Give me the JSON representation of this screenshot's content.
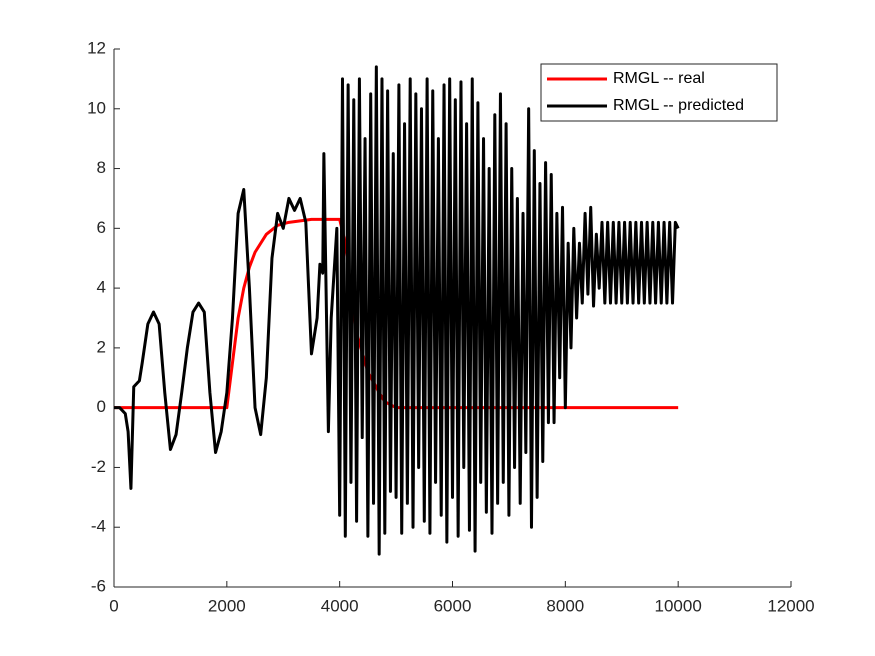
{
  "chart_data": {
    "type": "line",
    "xlim": [
      0,
      12000
    ],
    "xticks": [
      0,
      2000,
      4000,
      6000,
      8000,
      10000,
      12000
    ],
    "ylim": [
      -6,
      12
    ],
    "yticks": [
      -6,
      -4,
      -2,
      0,
      2,
      4,
      6,
      8,
      10,
      12
    ],
    "legend": "northeast",
    "series": [
      {
        "name": "RMGL -- real",
        "color": "#ff0000",
        "x": [
          0,
          500,
          1000,
          1500,
          1900,
          2000,
          2100,
          2200,
          2300,
          2400,
          2500,
          2700,
          2900,
          3100,
          3300,
          3500,
          3800,
          4000,
          4100,
          4200,
          4300,
          4500,
          4700,
          4800,
          5000,
          6000,
          8000,
          10000
        ],
        "values": [
          0,
          0,
          0,
          0,
          0,
          0,
          1.5,
          3,
          4,
          4.7,
          5.2,
          5.8,
          6.1,
          6.2,
          6.25,
          6.3,
          6.3,
          6.3,
          5.5,
          4,
          2.5,
          1.2,
          0.5,
          0.2,
          0,
          0,
          0,
          0
        ]
      },
      {
        "name": "RMGL -- predicted",
        "color": "#000000",
        "x": [
          0,
          100,
          200,
          250,
          300,
          350,
          400,
          450,
          500,
          600,
          700,
          800,
          900,
          1000,
          1100,
          1200,
          1300,
          1400,
          1500,
          1600,
          1700,
          1800,
          1900,
          2000,
          2100,
          2200,
          2300,
          2400,
          2500,
          2600,
          2700,
          2800,
          2900,
          3000,
          3100,
          3200,
          3300,
          3400,
          3450,
          3500,
          3600,
          3650,
          3700,
          3720,
          3800,
          3850,
          3950,
          4000,
          4050,
          4100,
          4150,
          4200,
          4250,
          4300,
          4350,
          4400,
          4450,
          4500,
          4550,
          4600,
          4650,
          4700,
          4750,
          4800,
          4850,
          4900,
          4950,
          5000,
          5050,
          5100,
          5150,
          5200,
          5250,
          5300,
          5350,
          5400,
          5450,
          5500,
          5550,
          5600,
          5650,
          5700,
          5750,
          5800,
          5850,
          5900,
          5950,
          6000,
          6050,
          6100,
          6150,
          6200,
          6250,
          6300,
          6350,
          6400,
          6450,
          6500,
          6550,
          6600,
          6650,
          6700,
          6750,
          6800,
          6850,
          6900,
          6950,
          7000,
          7050,
          7100,
          7150,
          7200,
          7250,
          7300,
          7350,
          7400,
          7450,
          7500,
          7550,
          7600,
          7650,
          7700,
          7750,
          7800,
          7850,
          7900,
          7950,
          8000,
          8050,
          8100,
          8150,
          8200,
          8250,
          8300,
          8350,
          8400,
          8450,
          8500,
          8550,
          8600,
          8650,
          8700,
          8750,
          8800,
          8850,
          8900,
          8950,
          9000,
          9050,
          9100,
          9150,
          9200,
          9250,
          9300,
          9350,
          9400,
          9450,
          9500,
          9550,
          9600,
          9650,
          9700,
          9750,
          9800,
          9850,
          9900,
          9950,
          10000
        ],
        "values": [
          0,
          0,
          -0.2,
          -0.8,
          -2.7,
          0.7,
          0.8,
          0.9,
          1.5,
          2.8,
          3.2,
          2.8,
          0.5,
          -1.4,
          -0.9,
          0.5,
          2,
          3.2,
          3.5,
          3.2,
          0.5,
          -1.5,
          -0.8,
          0.5,
          3,
          6.5,
          7.3,
          4,
          0,
          -0.9,
          1,
          5,
          6.5,
          6,
          7,
          6.6,
          7,
          6.2,
          4,
          1.8,
          3,
          4.8,
          4.5,
          8.5,
          -0.8,
          3,
          6,
          -3.6,
          11,
          -4.3,
          10.8,
          -2.5,
          10.3,
          -3.8,
          11,
          -1,
          9,
          -4.3,
          10.5,
          -3.2,
          11.4,
          -4.9,
          11,
          -4.2,
          10.6,
          -2.8,
          8.5,
          -3,
          10.8,
          -4.2,
          9.5,
          -3.2,
          11,
          -4,
          10.5,
          -2,
          10,
          -3.8,
          11,
          -4.2,
          10.6,
          -2.5,
          9,
          -3.6,
          10.8,
          -4.5,
          11,
          -3,
          10.3,
          -4.3,
          10.9,
          -2,
          9.5,
          -4.1,
          11,
          -4.8,
          10.2,
          -2.5,
          9,
          -3.5,
          8,
          -4.2,
          9.8,
          -3.2,
          10.5,
          -2.5,
          9.5,
          -3.6,
          8,
          -2,
          7,
          -3.2,
          6.5,
          -1.5,
          10,
          -4,
          8.6,
          -3,
          7.5,
          -1.8,
          8.2,
          -0.5,
          7.8,
          -0.5,
          6.5,
          1,
          6.7,
          0,
          5.5,
          2,
          6,
          3,
          5.5,
          3.5,
          6.5,
          3.8,
          6.7,
          3.4,
          5.8,
          4,
          6.2,
          3.5,
          6.2,
          3.5,
          6.2,
          3.5,
          6.2,
          3.5,
          6.2,
          3.5,
          6.2,
          3.5,
          6.2,
          3.5,
          6.2,
          3.5,
          6.2,
          3.5,
          6.2,
          3.5,
          6.2,
          3.5,
          6.2,
          3.5,
          6.2,
          3.5,
          6.2,
          6
        ]
      }
    ]
  }
}
